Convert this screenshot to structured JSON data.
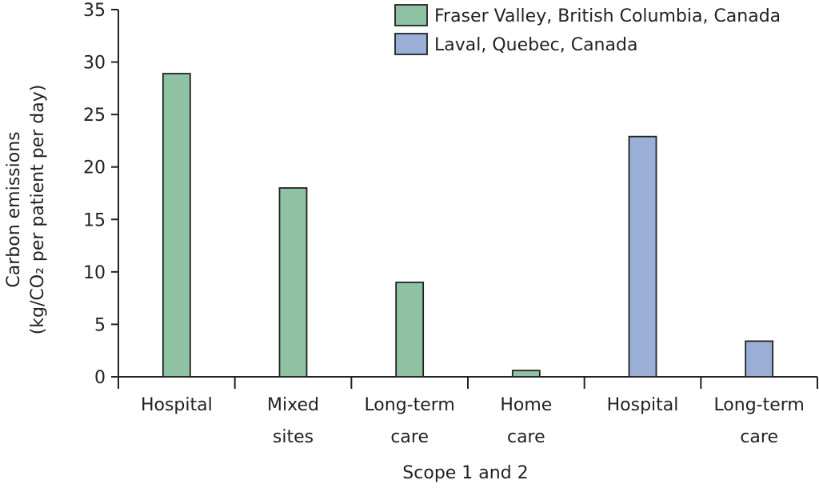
{
  "chart_data": {
    "type": "bar",
    "title": "",
    "ylabel_line1": "Carbon emissions",
    "ylabel_line2": "(kg/CO₂ per patient per day)",
    "xlabel": "Scope 1 and 2",
    "ylim": [
      0,
      35
    ],
    "yticks": [
      0,
      5,
      10,
      15,
      20,
      25,
      30,
      35
    ],
    "grid": false,
    "legend_position": "top-right",
    "categories": [
      {
        "lines": [
          "Hospital"
        ],
        "series": "Fraser Valley, British Columbia, Canada",
        "value": 28.9
      },
      {
        "lines": [
          "Mixed",
          "sites"
        ],
        "series": "Fraser Valley, British Columbia, Canada",
        "value": 18.0
      },
      {
        "lines": [
          "Long-term",
          "care"
        ],
        "series": "Fraser Valley, British Columbia, Canada",
        "value": 9.0
      },
      {
        "lines": [
          "Home",
          "care"
        ],
        "series": "Fraser Valley, British Columbia, Canada",
        "value": 0.6
      },
      {
        "lines": [
          "Hospital"
        ],
        "series": "Laval, Quebec, Canada",
        "value": 22.9
      },
      {
        "lines": [
          "Long-term",
          "care"
        ],
        "series": "Laval, Quebec, Canada",
        "value": 3.4
      }
    ],
    "series": [
      {
        "name": "Fraser Valley, British Columbia, Canada",
        "color": "#8fc2a3"
      },
      {
        "name": "Laval, Quebec, Canada",
        "color": "#9aaed6"
      }
    ]
  }
}
